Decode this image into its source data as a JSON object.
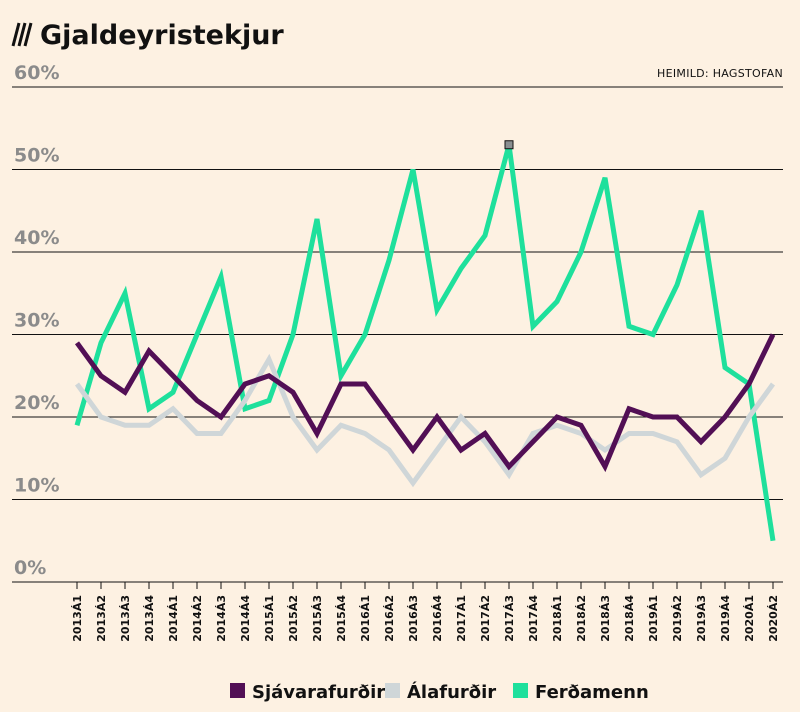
{
  "chart_data": {
    "type": "line",
    "title": "Gjaldeyristekjur",
    "source": "HEIMILD: HAGSTOFAN",
    "xlabel": "",
    "ylabel": "",
    "ylim": [
      0,
      60
    ],
    "yticks": [
      "0%",
      "10%",
      "20%",
      "30%",
      "40%",
      "50%",
      "60%"
    ],
    "ytick_values": [
      0,
      10,
      20,
      30,
      40,
      50,
      60
    ],
    "grid": true,
    "legend_position": "bottom",
    "categories": [
      "2013Á1",
      "2013Á2",
      "2013Á3",
      "2013Á4",
      "2014Á1",
      "2014Á2",
      "2014Á3",
      "2014Á4",
      "2015Á1",
      "2015Á2",
      "2015Á3",
      "2015Á4",
      "2016Á1",
      "2016Á2",
      "2016Á3",
      "2016Á4",
      "2017Á1",
      "2017Á2",
      "2017Á3",
      "2017Á4",
      "2018Á1",
      "2018Á2",
      "2018Á3",
      "2018Á4",
      "2019Á1",
      "2019Á2",
      "2019Á3",
      "2019Á4",
      "2020Á1",
      "2020Á2"
    ],
    "series": [
      {
        "name": "Sjávarafurðir",
        "color": "#520f55",
        "values": [
          29,
          25,
          23,
          28,
          25,
          22,
          20,
          24,
          25,
          23,
          18,
          24,
          24,
          20,
          16,
          20,
          16,
          18,
          14,
          17,
          20,
          19,
          14,
          21,
          20,
          20,
          17,
          20,
          24,
          30
        ]
      },
      {
        "name": "Álafurðir",
        "color": "#cfd6d8",
        "values": [
          24,
          20,
          19,
          19,
          21,
          18,
          18,
          22,
          27,
          20,
          16,
          19,
          18,
          16,
          12,
          16,
          20,
          17,
          13,
          18,
          19,
          18,
          16,
          18,
          18,
          17,
          13,
          15,
          20,
          24
        ]
      },
      {
        "name": "Ferðamenn",
        "color": "#1ee09c",
        "values": [
          19,
          29,
          35,
          21,
          23,
          30,
          37,
          21,
          22,
          30,
          44,
          25,
          30,
          39,
          50,
          33,
          38,
          42,
          53,
          31,
          34,
          40,
          49,
          31,
          30,
          36,
          45,
          26,
          24,
          5
        ]
      }
    ],
    "marker": {
      "series": "Ferðamenn",
      "category": "2017Á3",
      "color": "#8a8f91"
    }
  }
}
